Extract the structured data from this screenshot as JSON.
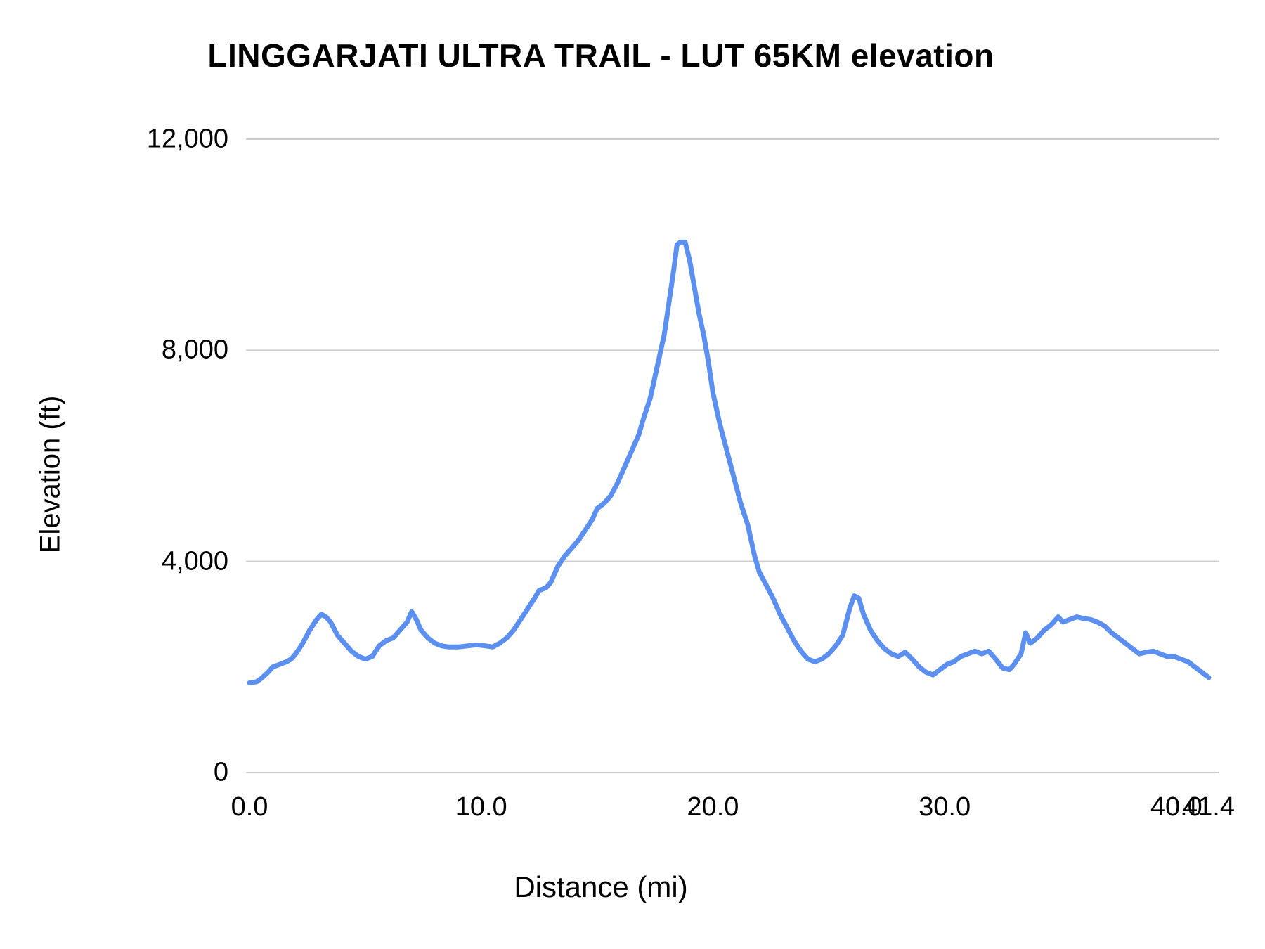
{
  "chart_data": {
    "type": "line",
    "title": "LINGGARJATI ULTRA TRAIL - LUT 65KM elevation",
    "xlabel": "Distance (mi)",
    "ylabel": "Elevation (ft)",
    "xlim": [
      0,
      41.4
    ],
    "ylim": [
      0,
      12000
    ],
    "grid": "horizontal-only",
    "legend": "none",
    "line_color": "#5b8ff0",
    "gridline_color": "#cccccc",
    "y_ticks": [
      {
        "value": 0,
        "label": "0"
      },
      {
        "value": 4000,
        "label": "4,000"
      },
      {
        "value": 8000,
        "label": "8,000"
      },
      {
        "value": 12000,
        "label": "12,000"
      }
    ],
    "x_ticks": [
      {
        "value": 0.0,
        "label": "0.0"
      },
      {
        "value": 10.0,
        "label": "10.0"
      },
      {
        "value": 20.0,
        "label": "20.0"
      },
      {
        "value": 30.0,
        "label": "30.0"
      },
      {
        "value": 40.0,
        "label": "40.0"
      },
      {
        "value": 41.4,
        "label": "41.4"
      }
    ],
    "series_name": "Elevation (ft)",
    "points": {
      "x": [
        0.0,
        0.3,
        0.5,
        0.8,
        1.0,
        1.3,
        1.6,
        1.8,
        2.0,
        2.3,
        2.6,
        2.9,
        3.1,
        3.3,
        3.5,
        3.8,
        4.1,
        4.4,
        4.7,
        5.0,
        5.3,
        5.6,
        5.9,
        6.2,
        6.5,
        6.8,
        7.0,
        7.2,
        7.4,
        7.7,
        8.0,
        8.3,
        8.6,
        9.0,
        9.4,
        9.8,
        10.2,
        10.5,
        10.8,
        11.1,
        11.4,
        11.7,
        12.0,
        12.3,
        12.5,
        12.8,
        13.0,
        13.3,
        13.6,
        13.9,
        14.2,
        14.5,
        14.8,
        15.0,
        15.3,
        15.6,
        15.9,
        16.2,
        16.5,
        16.8,
        17.0,
        17.3,
        17.5,
        17.7,
        17.9,
        18.1,
        18.3,
        18.45,
        18.6,
        18.8,
        19.0,
        19.2,
        19.4,
        19.6,
        19.8,
        20.0,
        20.3,
        20.6,
        20.9,
        21.2,
        21.5,
        21.8,
        22.0,
        22.3,
        22.6,
        22.9,
        23.2,
        23.5,
        23.8,
        24.1,
        24.4,
        24.7,
        25.0,
        25.3,
        25.6,
        25.9,
        26.1,
        26.3,
        26.5,
        26.8,
        27.1,
        27.4,
        27.7,
        28.0,
        28.3,
        28.6,
        28.9,
        29.2,
        29.5,
        29.8,
        30.1,
        30.4,
        30.7,
        31.0,
        31.3,
        31.6,
        31.9,
        32.2,
        32.5,
        32.8,
        33.0,
        33.3,
        33.5,
        33.7,
        34.0,
        34.3,
        34.6,
        34.9,
        35.1,
        35.4,
        35.7,
        36.0,
        36.3,
        36.6,
        36.9,
        37.2,
        37.5,
        37.8,
        38.1,
        38.4,
        38.7,
        39.0,
        39.3,
        39.6,
        39.9,
        40.2,
        40.5,
        40.8,
        41.1,
        41.4
      ],
      "y": [
        1700,
        1720,
        1780,
        1900,
        2000,
        2050,
        2100,
        2150,
        2250,
        2450,
        2700,
        2900,
        3000,
        2950,
        2850,
        2600,
        2450,
        2300,
        2200,
        2150,
        2200,
        2400,
        2500,
        2550,
        2700,
        2850,
        3050,
        2900,
        2700,
        2550,
        2450,
        2400,
        2380,
        2380,
        2400,
        2420,
        2400,
        2380,
        2450,
        2550,
        2700,
        2900,
        3100,
        3300,
        3450,
        3500,
        3600,
        3900,
        4100,
        4250,
        4400,
        4600,
        4800,
        5000,
        5100,
        5250,
        5500,
        5800,
        6100,
        6400,
        6700,
        7100,
        7500,
        7900,
        8300,
        8900,
        9500,
        10000,
        10050,
        10050,
        9700,
        9200,
        8700,
        8300,
        7800,
        7200,
        6600,
        6100,
        5600,
        5100,
        4700,
        4100,
        3800,
        3550,
        3300,
        3000,
        2750,
        2500,
        2300,
        2150,
        2100,
        2150,
        2250,
        2400,
        2600,
        3100,
        3350,
        3300,
        3000,
        2700,
        2500,
        2350,
        2250,
        2200,
        2280,
        2150,
        2000,
        1900,
        1850,
        1950,
        2050,
        2100,
        2200,
        2250,
        2300,
        2250,
        2300,
        2150,
        1980,
        1950,
        2050,
        2250,
        2650,
        2450,
        2550,
        2700,
        2800,
        2950,
        2850,
        2900,
        2950,
        2920,
        2900,
        2850,
        2780,
        2650,
        2550,
        2450,
        2350,
        2250,
        2280,
        2300,
        2250,
        2200,
        2200,
        2150,
        2100,
        2000,
        1900,
        1800
      ]
    }
  }
}
